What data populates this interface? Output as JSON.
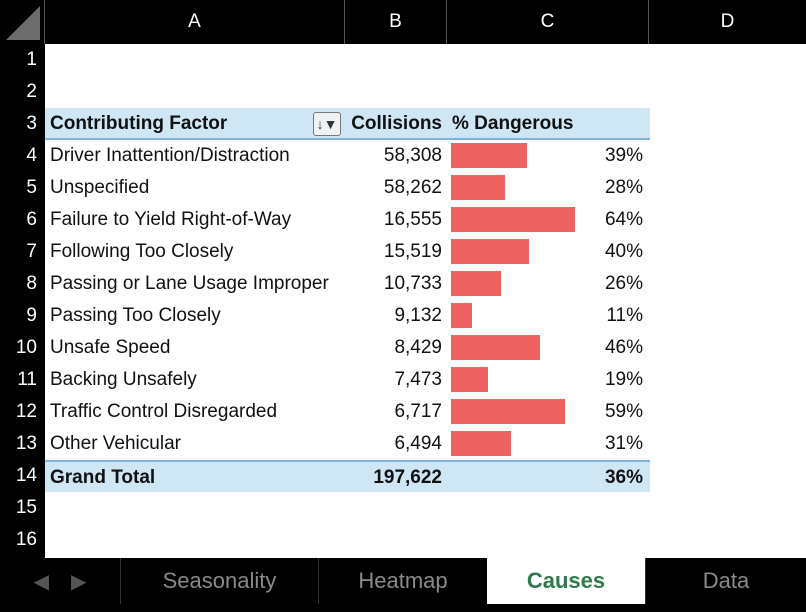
{
  "columns": [
    "A",
    "B",
    "C",
    "D"
  ],
  "row_numbers": [
    "1",
    "2",
    "3",
    "4",
    "5",
    "6",
    "7",
    "8",
    "9",
    "10",
    "11",
    "12",
    "13",
    "14",
    "15",
    "16"
  ],
  "table": {
    "header": {
      "factor": "Contributing Factor",
      "collisions": "Collisions",
      "dangerous": "% Dangerous"
    },
    "rows": [
      {
        "factor": "Driver Inattention/Distraction",
        "collisions": "58,308",
        "pct": "39%",
        "fraction": 0.39
      },
      {
        "factor": "Unspecified",
        "collisions": "58,262",
        "pct": "28%",
        "fraction": 0.28
      },
      {
        "factor": "Failure to Yield Right-of-Way",
        "collisions": "16,555",
        "pct": "64%",
        "fraction": 0.64
      },
      {
        "factor": "Following Too Closely",
        "collisions": "15,519",
        "pct": "40%",
        "fraction": 0.4
      },
      {
        "factor": "Passing or Lane Usage Improper",
        "collisions": "10,733",
        "pct": "26%",
        "fraction": 0.26
      },
      {
        "factor": "Passing Too Closely",
        "collisions": "9,132",
        "pct": "11%",
        "fraction": 0.11
      },
      {
        "factor": "Unsafe Speed",
        "collisions": "8,429",
        "pct": "46%",
        "fraction": 0.46
      },
      {
        "factor": "Backing Unsafely",
        "collisions": "7,473",
        "pct": "19%",
        "fraction": 0.19
      },
      {
        "factor": "Traffic Control Disregarded",
        "collisions": "6,717",
        "pct": "59%",
        "fraction": 0.59
      },
      {
        "factor": "Other Vehicular",
        "collisions": "6,494",
        "pct": "31%",
        "fraction": 0.31
      }
    ],
    "total": {
      "factor": "Grand Total",
      "collisions": "197,622",
      "pct": "36%"
    }
  },
  "colors": {
    "bar": "#ef6262",
    "header_bg": "#cfe6f5",
    "active_tab": "#2f7a4d"
  },
  "icons": {
    "filter": "sort-filter-icon",
    "prev": "triangle-left-icon",
    "next": "triangle-right-icon"
  },
  "tabs": [
    {
      "label": "Seasonality",
      "active": false
    },
    {
      "label": "Heatmap",
      "active": false
    },
    {
      "label": "Causes",
      "active": true
    },
    {
      "label": "Data",
      "active": false
    }
  ]
}
